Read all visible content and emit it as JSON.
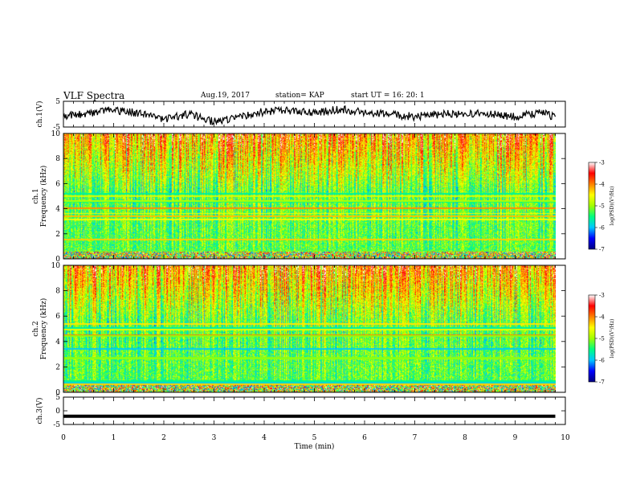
{
  "header": {
    "title": "VLF Spectra",
    "date": "Aug.19, 2017",
    "station": "station= KAP",
    "start": "start  UT  =   16: 20: 1"
  },
  "chart_data": [
    {
      "type": "line",
      "panel": "ch1-waveform",
      "ylabel": "ch.1(V)",
      "ylim": [
        -5,
        5
      ],
      "y_ticks": [
        "5",
        "-5"
      ],
      "xlim": [
        0,
        10
      ],
      "x": [
        0,
        0.5,
        1.0,
        1.5,
        2.0,
        2.5,
        3.0,
        3.5,
        4.0,
        4.5,
        5.0,
        5.5,
        6.0,
        6.5,
        7.0,
        7.5,
        8.0,
        8.5,
        9.0,
        9.5,
        9.8
      ],
      "values": [
        -1,
        0.5,
        1.5,
        0.5,
        -2,
        0,
        -3,
        -1,
        1,
        1.5,
        0.5,
        2,
        0.5,
        0,
        -1,
        0,
        0.5,
        0,
        -1,
        0.5,
        -1
      ]
    },
    {
      "type": "heatmap",
      "panel": "ch1-spectrogram",
      "ylabel_top": "ch.1",
      "ylabel": "Frequency (kHz)",
      "ylim": [
        0,
        10
      ],
      "y_ticks": [
        "0",
        "2",
        "4",
        "6",
        "8",
        "10"
      ],
      "xlim": [
        0,
        10
      ],
      "data_end_min": 9.8,
      "colorbar": {
        "label": "log(PSD)(V²/Hz)",
        "ticks": [
          "-3",
          "-4",
          "-5",
          "-6",
          "-7"
        ],
        "range": [
          -7,
          -3
        ]
      },
      "colormap": [
        "#000080",
        "#0000ff",
        "#00c8ff",
        "#00ff80",
        "#a0ff00",
        "#ffff00",
        "#ff8000",
        "#ff0000",
        "#ffffff"
      ]
    },
    {
      "type": "heatmap",
      "panel": "ch2-spectrogram",
      "ylabel_top": "ch.2",
      "ylabel": "Frequency (kHz)",
      "ylim": [
        0,
        10
      ],
      "y_ticks": [
        "0",
        "2",
        "4",
        "6",
        "8",
        "10"
      ],
      "xlim": [
        0,
        10
      ],
      "data_end_min": 9.8,
      "colorbar": {
        "label": "log(PSD)(V²/Hz)",
        "ticks": [
          "-3",
          "-4",
          "-5",
          "-6",
          "-7"
        ],
        "range": [
          -7,
          -3
        ]
      },
      "colormap": [
        "#000080",
        "#0000ff",
        "#00c8ff",
        "#00ff80",
        "#a0ff00",
        "#ffff00",
        "#ff8000",
        "#ff0000",
        "#ffffff"
      ]
    },
    {
      "type": "line",
      "panel": "ch3-waveform",
      "ylabel": "ch.3(V)",
      "ylim": [
        -5,
        5
      ],
      "y_ticks": [
        "5",
        "0",
        "-5"
      ],
      "xlim": [
        0,
        10
      ],
      "x": [
        0,
        9.8
      ],
      "values": [
        -2,
        -2
      ],
      "xlabel": "Time (min)",
      "x_ticks": [
        "0",
        "1",
        "2",
        "3",
        "4",
        "5",
        "6",
        "7",
        "8",
        "9",
        "10"
      ]
    }
  ]
}
